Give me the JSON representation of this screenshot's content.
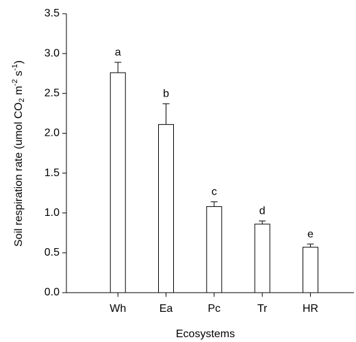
{
  "chart_data": {
    "type": "bar",
    "x_label": "Ecosystems",
    "y_label": [
      "Soil respiration rate (umol CO",
      "2",
      " m",
      "-2",
      " s",
      "-1",
      ")"
    ],
    "categories": [
      "Wh",
      "Ea",
      "Pc",
      "Tr",
      "HR"
    ],
    "values": [
      2.76,
      2.11,
      1.08,
      0.86,
      0.57
    ],
    "errors": [
      0.13,
      0.26,
      0.06,
      0.04,
      0.04
    ],
    "annotations": [
      "a",
      "b",
      "c",
      "d",
      "e"
    ],
    "color": "#ffffff",
    "ylim": [
      0,
      3.5
    ],
    "yticks": [
      {
        "value": 0,
        "label": "0.0"
      },
      0.5,
      {
        "value": 1,
        "label": "1.0"
      },
      1.5,
      {
        "value": 2,
        "label": "2.0"
      },
      2.5,
      {
        "value": 3,
        "label": "3.0"
      },
      3.5
    ]
  }
}
